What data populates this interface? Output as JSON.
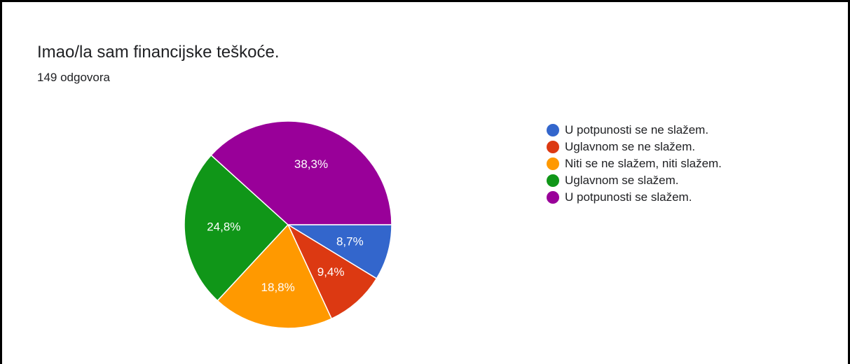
{
  "chart_data": {
    "type": "pie",
    "title": "Imao/la sam financijske teškoće.",
    "subtitle": "149 odgovora",
    "legend_position": "right",
    "slices": [
      {
        "label": "U potpunosti se ne slažem.",
        "value": 8.7,
        "value_label": "8,7%",
        "color": "#3366cc"
      },
      {
        "label": "Uglavnom se ne slažem.",
        "value": 9.4,
        "value_label": "9,4%",
        "color": "#dc3912"
      },
      {
        "label": "Niti se ne slažem, niti slažem.",
        "value": 18.8,
        "value_label": "18,8%",
        "color": "#ff9900"
      },
      {
        "label": "Uglavnom se slažem.",
        "value": 24.8,
        "value_label": "24,8%",
        "color": "#109618"
      },
      {
        "label": "U potpunosti se slažem.",
        "value": 38.3,
        "value_label": "38,3%",
        "color": "#990099"
      }
    ]
  }
}
